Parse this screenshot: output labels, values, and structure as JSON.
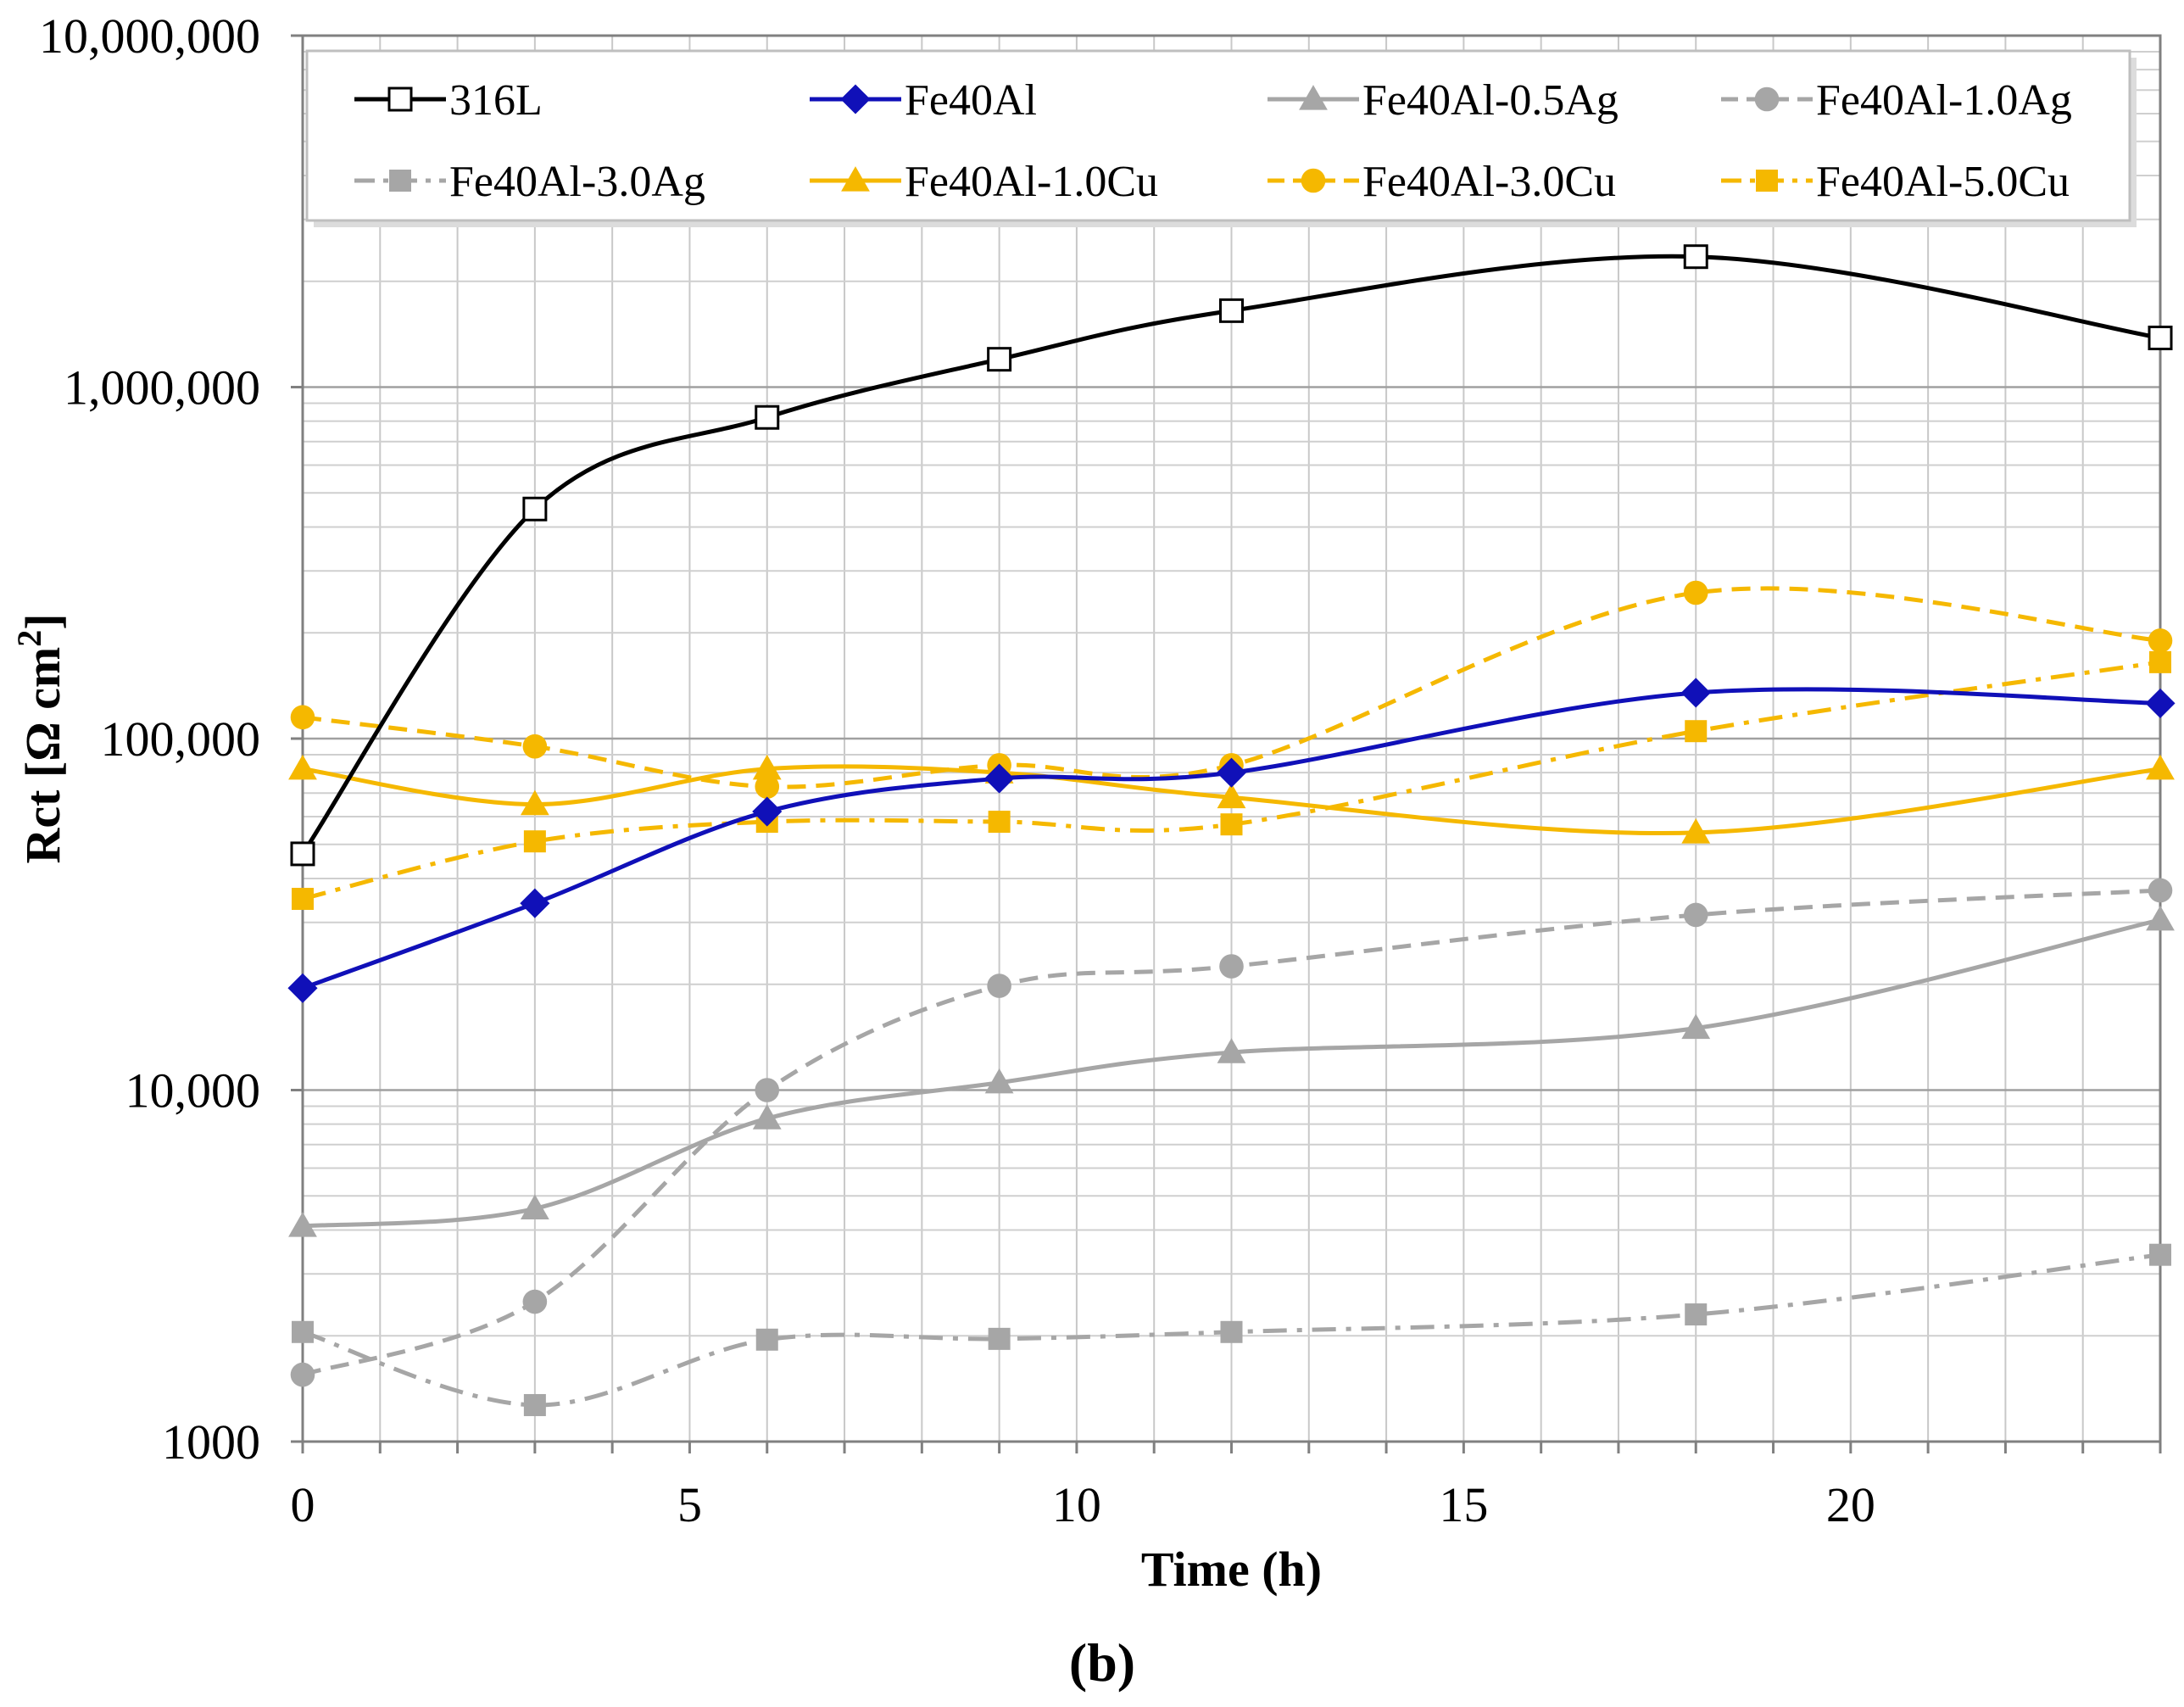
{
  "chart_data": {
    "type": "line",
    "y_scale": "log",
    "xlabel": "Time (h)",
    "ylabel_prefix": "Rct [Ω cm",
    "ylabel_sup": "2",
    "ylabel_suffix": "]",
    "caption": "(b)",
    "xlim": [
      0,
      24
    ],
    "ylim": [
      1000,
      10000000
    ],
    "x_ticks": [
      0,
      5,
      10,
      15,
      20
    ],
    "x_tick_labels": [
      "0",
      "5",
      "10",
      "15",
      "20"
    ],
    "y_ticks": [
      1000,
      10000,
      100000,
      1000000,
      10000000
    ],
    "y_tick_labels": [
      "1000",
      "10,000",
      "100,000",
      "1,000,000",
      "10,000,000"
    ],
    "grid": true,
    "legend_position": "top",
    "series": [
      {
        "name": "316L",
        "color": "#000000",
        "dash": "solid",
        "marker": "square-open",
        "x": [
          0,
          3,
          6,
          9,
          12,
          18,
          24
        ],
        "y": [
          47000,
          450000,
          820000,
          1200000,
          1650000,
          2350000,
          1380000
        ]
      },
      {
        "name": "Fe40Al",
        "color": "#1010b8",
        "dash": "solid",
        "marker": "diamond",
        "x": [
          0,
          3,
          6,
          9,
          12,
          18,
          24
        ],
        "y": [
          19500,
          34000,
          62000,
          77000,
          80000,
          135000,
          126000
        ]
      },
      {
        "name": "Fe40Al-0.5Ag",
        "color": "#a6a6a6",
        "dash": "solid",
        "marker": "triangle",
        "x": [
          0,
          3,
          6,
          9,
          12,
          18,
          24
        ],
        "y": [
          4100,
          4600,
          8300,
          10500,
          12800,
          15000,
          30500
        ]
      },
      {
        "name": "Fe40Al-1.0Ag",
        "color": "#a6a6a6",
        "dash": "dash",
        "marker": "circle",
        "x": [
          0,
          3,
          6,
          9,
          12,
          18,
          24
        ],
        "y": [
          1550,
          2500,
          10000,
          19800,
          22500,
          31500,
          37000
        ]
      },
      {
        "name": "Fe40Al-3.0Ag",
        "color": "#a6a6a6",
        "dash": "dashdot",
        "marker": "square",
        "x": [
          0,
          3,
          6,
          9,
          12,
          18,
          24
        ],
        "y": [
          2050,
          1270,
          1950,
          1960,
          2050,
          2300,
          3400
        ]
      },
      {
        "name": "Fe40Al-1.0Cu",
        "color": "#f5b800",
        "dash": "solid",
        "marker": "triangle",
        "x": [
          0,
          3,
          6,
          9,
          12,
          18,
          24
        ],
        "y": [
          82000,
          65000,
          82000,
          80000,
          68000,
          54000,
          82000
        ]
      },
      {
        "name": "Fe40Al-3.0Cu",
        "color": "#f5b800",
        "dash": "dash",
        "marker": "circle",
        "x": [
          0,
          3,
          6,
          9,
          12,
          18,
          24
        ],
        "y": [
          115000,
          95000,
          73000,
          84000,
          84000,
          260000,
          190000
        ]
      },
      {
        "name": "Fe40Al-5.0Cu",
        "color": "#f5b800",
        "dash": "dashdot",
        "marker": "square",
        "x": [
          0,
          3,
          6,
          9,
          12,
          18,
          24
        ],
        "y": [
          35000,
          51000,
          58000,
          58000,
          57000,
          105000,
          165000
        ]
      }
    ]
  }
}
